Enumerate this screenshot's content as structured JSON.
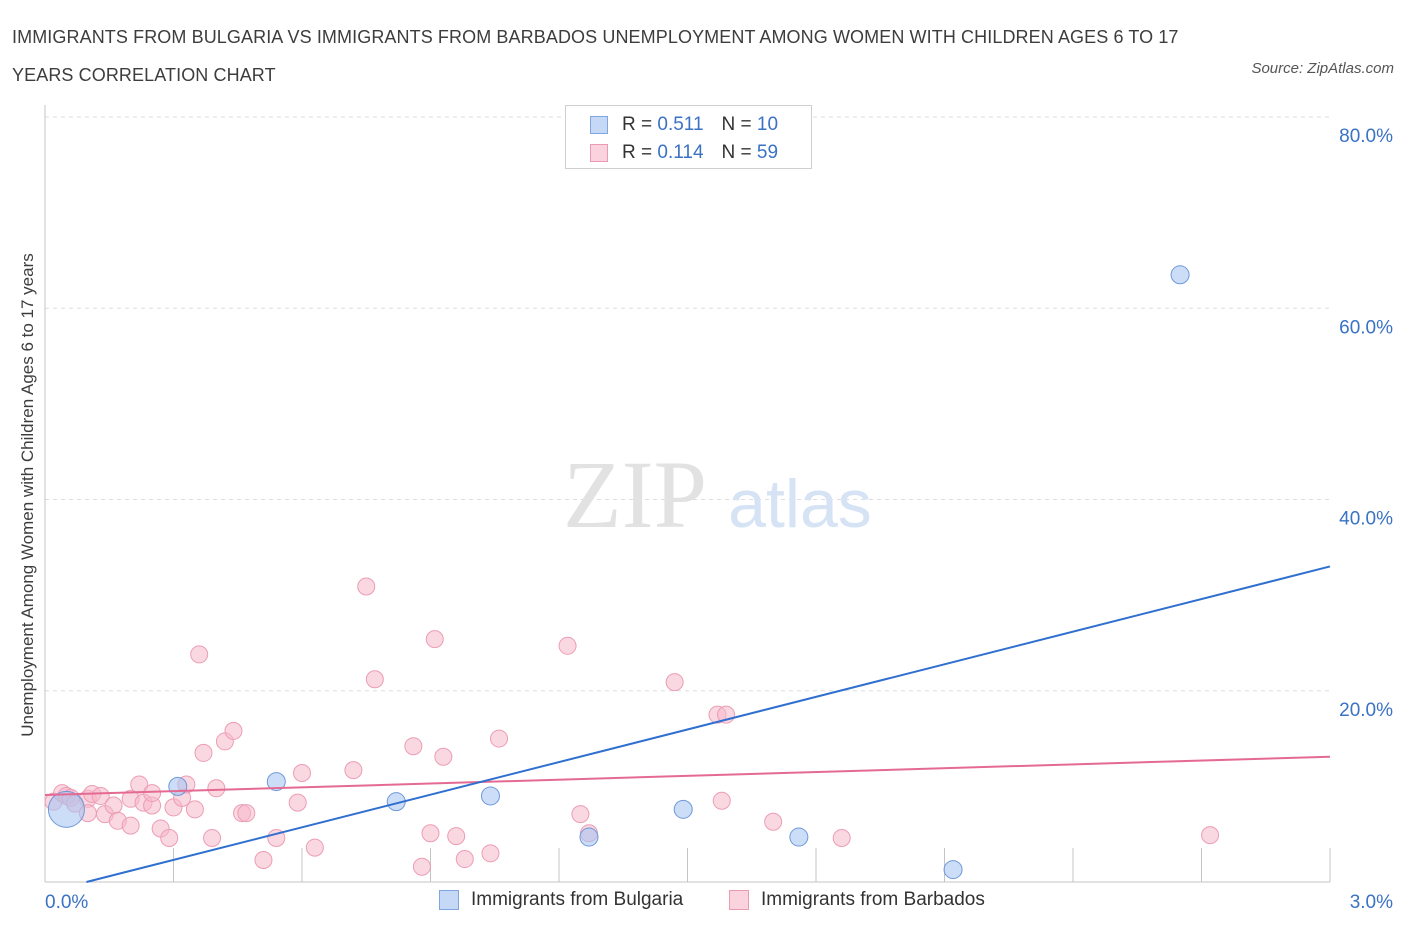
{
  "header": {
    "title": "IMMIGRANTS FROM BULGARIA VS IMMIGRANTS FROM BARBADOS UNEMPLOYMENT AMONG WOMEN WITH CHILDREN AGES 6 TO 17 YEARS CORRELATION CHART",
    "source": "Source: ZipAtlas.com"
  },
  "watermark": {
    "zip": "ZIP",
    "atlas": "atlas"
  },
  "colors": {
    "bulgaria_fill": "#a9c6f2",
    "bulgaria_line": "#2f6fcf",
    "barbados_fill": "#f6b8cb",
    "barbados_line": "#e46a93",
    "tick_text": "#3a72c4",
    "grid": "#dddddd"
  },
  "legend_top": {
    "rows": [
      {
        "r_label": "R =",
        "r_value": "0.511",
        "n_label": "N =",
        "n_value": "10"
      },
      {
        "r_label": "R =",
        "r_value": "0.114",
        "n_label": "N =",
        "n_value": "59"
      }
    ]
  },
  "legend_bottom": {
    "items": [
      "Immigrants from Bulgaria",
      "Immigrants from Barbados"
    ]
  },
  "chart_data": {
    "type": "scatter",
    "title": "IMMIGRANTS FROM BULGARIA VS IMMIGRANTS FROM BARBADOS UNEMPLOYMENT AMONG WOMEN WITH CHILDREN AGES 6 TO 17 YEARS CORRELATION CHART",
    "xlabel": "",
    "ylabel": "Unemployment Among Women with Children Ages 6 to 17 years",
    "xlim": [
      0,
      3.0
    ],
    "ylim": [
      0,
      80
    ],
    "x_tick_labels": [
      "0.0%",
      "3.0%"
    ],
    "y_ticks": [
      20,
      40,
      60,
      80
    ],
    "y_tick_labels": [
      "20.0%",
      "40.0%",
      "60.0%",
      "80.0%"
    ],
    "grid": true,
    "legend_position": "top-center",
    "series": [
      {
        "name": "Immigrants from Bulgaria",
        "points": [
          [
            0.05,
            7.6,
            18
          ],
          [
            0.31,
            10.0,
            9
          ],
          [
            0.54,
            10.5,
            9
          ],
          [
            0.82,
            8.4,
            9
          ],
          [
            1.04,
            9.0,
            9
          ],
          [
            1.27,
            4.7,
            9
          ],
          [
            1.49,
            7.6,
            9
          ],
          [
            1.76,
            4.7,
            9
          ],
          [
            2.12,
            1.3,
            9
          ],
          [
            2.65,
            63.5,
            9
          ]
        ],
        "trend": {
          "x": [
            0.0,
            3.0
          ],
          "y": [
            -1.1,
            33.0
          ]
        }
      },
      {
        "name": "Immigrants from Barbados",
        "points": [
          [
            0.02,
            8.4
          ],
          [
            0.04,
            9.3
          ],
          [
            0.05,
            9.0
          ],
          [
            0.06,
            8.8
          ],
          [
            0.07,
            8.2
          ],
          [
            0.1,
            8.7
          ],
          [
            0.1,
            7.2
          ],
          [
            0.11,
            9.2
          ],
          [
            0.13,
            9.0
          ],
          [
            0.14,
            7.1
          ],
          [
            0.16,
            8.0
          ],
          [
            0.17,
            6.4
          ],
          [
            0.2,
            5.9
          ],
          [
            0.2,
            8.7
          ],
          [
            0.22,
            10.2
          ],
          [
            0.23,
            8.3
          ],
          [
            0.25,
            8.0
          ],
          [
            0.25,
            9.3
          ],
          [
            0.27,
            5.6
          ],
          [
            0.29,
            4.6
          ],
          [
            0.3,
            7.8
          ],
          [
            0.32,
            8.8
          ],
          [
            0.33,
            10.2
          ],
          [
            0.35,
            7.6
          ],
          [
            0.36,
            23.8
          ],
          [
            0.37,
            13.5
          ],
          [
            0.39,
            4.6
          ],
          [
            0.4,
            9.8
          ],
          [
            0.42,
            14.7
          ],
          [
            0.44,
            15.8
          ],
          [
            0.46,
            7.2
          ],
          [
            0.47,
            7.2
          ],
          [
            0.51,
            2.3
          ],
          [
            0.54,
            4.6
          ],
          [
            0.6,
            11.4
          ],
          [
            0.59,
            8.3
          ],
          [
            0.63,
            3.6
          ],
          [
            0.72,
            11.7
          ],
          [
            0.75,
            30.9
          ],
          [
            0.77,
            21.2
          ],
          [
            0.86,
            14.2
          ],
          [
            0.88,
            1.6
          ],
          [
            0.9,
            5.1
          ],
          [
            0.91,
            25.4
          ],
          [
            0.93,
            13.1
          ],
          [
            0.96,
            4.8
          ],
          [
            0.98,
            2.4
          ],
          [
            1.04,
            3.0
          ],
          [
            1.06,
            15.0
          ],
          [
            1.22,
            24.7
          ],
          [
            1.25,
            7.1
          ],
          [
            1.27,
            5.1
          ],
          [
            1.47,
            20.9
          ],
          [
            1.57,
            17.5
          ],
          [
            1.59,
            17.5
          ],
          [
            1.58,
            8.5
          ],
          [
            1.7,
            6.3
          ],
          [
            1.86,
            4.6
          ],
          [
            2.72,
            4.9
          ]
        ],
        "trend": {
          "x": [
            0.0,
            3.0
          ],
          "y": [
            9.1,
            13.1
          ]
        }
      }
    ]
  }
}
